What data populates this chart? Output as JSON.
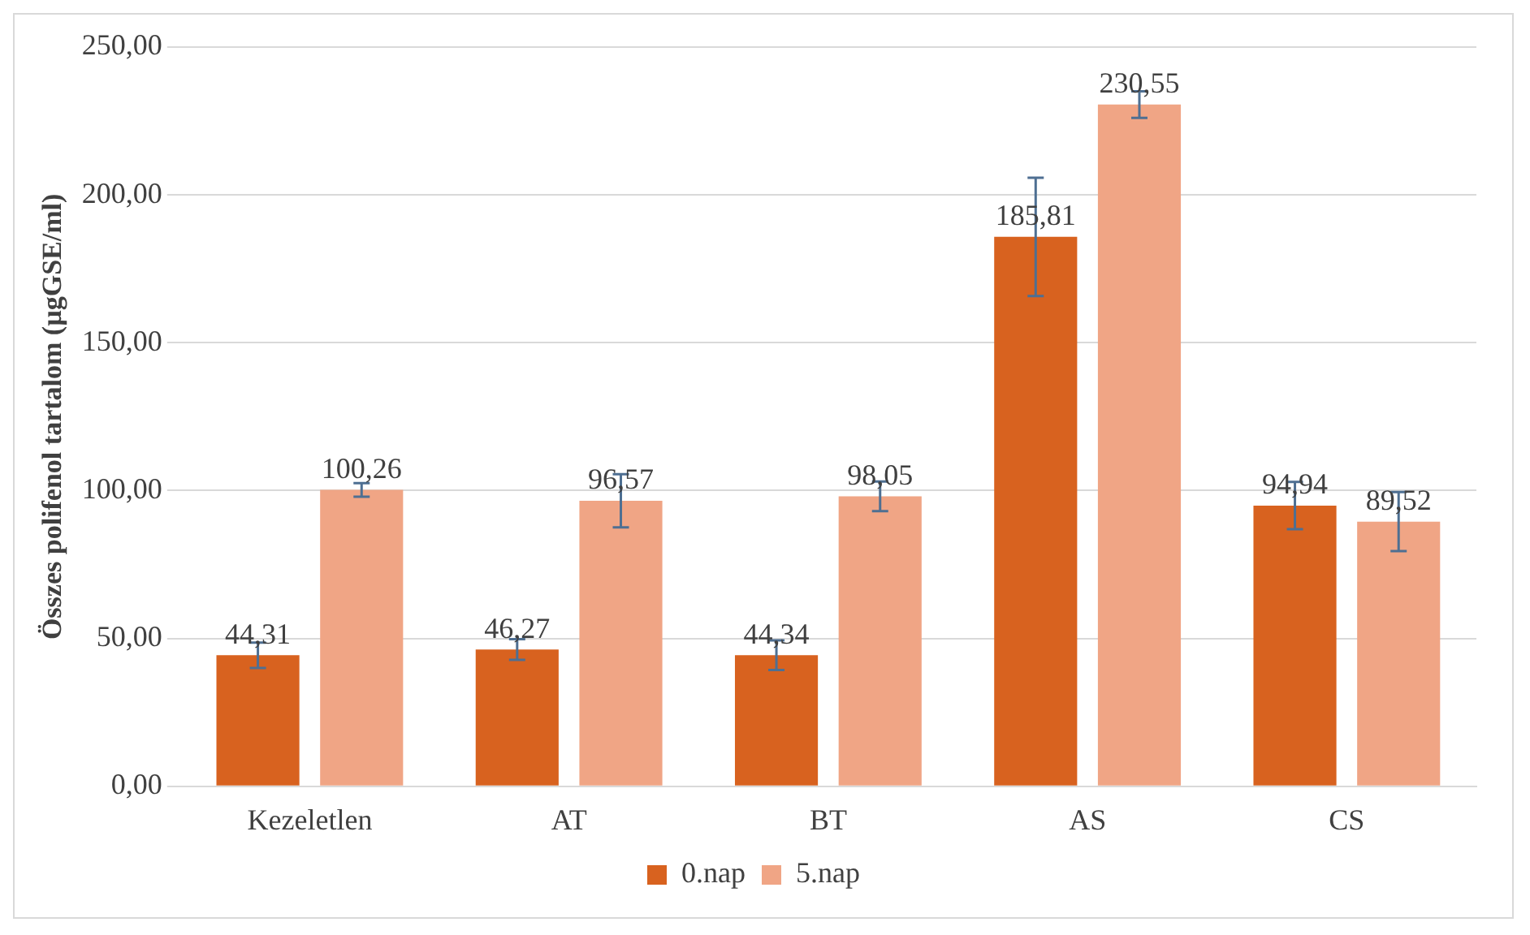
{
  "chart_data": {
    "type": "bar",
    "ylabel": "Összes polifenol tartalom (µgGSE/ml)",
    "categories": [
      "Kezeletlen",
      "AT",
      "BT",
      "AS",
      "CS"
    ],
    "series": [
      {
        "name": "0.nap",
        "color": "#d8621f",
        "values": [
          44.31,
          46.27,
          44.34,
          185.81,
          94.94
        ],
        "errors": [
          4.3,
          3.5,
          5,
          20,
          8
        ],
        "value_labels": [
          "44,31",
          "46,27",
          "44,34",
          "185,81",
          "94,94"
        ]
      },
      {
        "name": "5.nap",
        "color": "#f0a585",
        "values": [
          100.26,
          96.57,
          98.05,
          230.55,
          89.52
        ],
        "errors": [
          2.3,
          9,
          5,
          4.5,
          10
        ],
        "value_labels": [
          "100,26",
          "96,57",
          "98,05",
          "230,55",
          "89,52"
        ]
      }
    ],
    "ylim": [
      0,
      250
    ],
    "yticks": [
      {
        "value": 0,
        "label": "0,00"
      },
      {
        "value": 50,
        "label": "50,00"
      },
      {
        "value": 100,
        "label": "100,00"
      },
      {
        "value": 150,
        "label": "150,00"
      },
      {
        "value": 200,
        "label": "200,00"
      },
      {
        "value": 250,
        "label": "250,00"
      }
    ],
    "grid": "y",
    "legend": "bottom"
  }
}
